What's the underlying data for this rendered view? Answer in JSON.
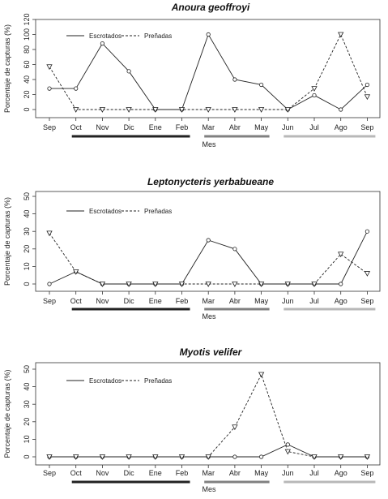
{
  "chart_data": [
    {
      "type": "line",
      "title": "Anoura geoffroyi",
      "xlabel": "Mes",
      "ylabel": "Porcentaje de capturas (%)",
      "categories": [
        "Sep",
        "Oct",
        "Nov",
        "Dic",
        "Ene",
        "Feb",
        "Mar",
        "Abr",
        "May",
        "Jun",
        "Jul",
        "Ago",
        "Sep"
      ],
      "ylim": [
        0,
        120
      ],
      "yticks": [
        0,
        20,
        40,
        60,
        80,
        100,
        120
      ],
      "legend_position": "top-left",
      "series": [
        {
          "name": "Escrotados",
          "style": "solid",
          "marker": "circle",
          "values": [
            28,
            28,
            88,
            51,
            0,
            0,
            100,
            40,
            33,
            0,
            19,
            0,
            33
          ]
        },
        {
          "name": "Preñadas",
          "style": "dashed",
          "marker": "triangle-down",
          "values": [
            57,
            0,
            0,
            0,
            0,
            0,
            0,
            0,
            0,
            0,
            28,
            100,
            17
          ]
        }
      ],
      "season_bars": [
        {
          "from": "Oct",
          "to": "Feb",
          "color": "#222222"
        },
        {
          "from": "Mar",
          "to": "May",
          "color": "#808080"
        },
        {
          "from": "Jun",
          "to": "Sep",
          "color": "#b8b8b8"
        }
      ]
    },
    {
      "type": "line",
      "title": "Leptonycteris yerbabueane",
      "xlabel": "Mes",
      "ylabel": "Porcentaje de capturas (%)",
      "categories": [
        "Sep",
        "Oct",
        "Nov",
        "Dic",
        "Ene",
        "Feb",
        "Mar",
        "Abr",
        "May",
        "Jun",
        "Jul",
        "Ago",
        "Sep"
      ],
      "ylim": [
        0,
        50
      ],
      "yticks": [
        0,
        10,
        20,
        30,
        40,
        50
      ],
      "legend_position": "top-left",
      "series": [
        {
          "name": "Escrotados",
          "style": "solid",
          "marker": "circle",
          "values": [
            0,
            7,
            0,
            0,
            0,
            0,
            25,
            20,
            0,
            0,
            0,
            0,
            30
          ]
        },
        {
          "name": "Preñadas",
          "style": "dashed",
          "marker": "triangle-down",
          "values": [
            29,
            7,
            0,
            0,
            0,
            0,
            0,
            0,
            0,
            0,
            0,
            17,
            6
          ]
        }
      ],
      "season_bars": [
        {
          "from": "Oct",
          "to": "Feb",
          "color": "#222222"
        },
        {
          "from": "Mar",
          "to": "May",
          "color": "#808080"
        },
        {
          "from": "Jun",
          "to": "Sep",
          "color": "#b8b8b8"
        }
      ]
    },
    {
      "type": "line",
      "title": "Myotis velifer",
      "xlabel": "Mes",
      "ylabel": "Porcentaje de capturas (%)",
      "categories": [
        "Sep",
        "Oct",
        "Nov",
        "Dic",
        "Ene",
        "Feb",
        "Mar",
        "Abr",
        "May",
        "Jun",
        "Jul",
        "Ago",
        "Sep"
      ],
      "ylim": [
        0,
        50
      ],
      "yticks": [
        0,
        10,
        20,
        30,
        40,
        50
      ],
      "legend_position": "top-left",
      "series": [
        {
          "name": "Escrotados",
          "style": "solid",
          "marker": "circle",
          "values": [
            0,
            0,
            0,
            0,
            0,
            0,
            0,
            0,
            0,
            7,
            0,
            0,
            0
          ]
        },
        {
          "name": "Preñadas",
          "style": "dashed",
          "marker": "triangle-down",
          "values": [
            0,
            0,
            0,
            0,
            0,
            0,
            0,
            17,
            47,
            3,
            0,
            0,
            0
          ]
        }
      ],
      "season_bars": [
        {
          "from": "Oct",
          "to": "Feb",
          "color": "#222222"
        },
        {
          "from": "Mar",
          "to": "May",
          "color": "#808080"
        },
        {
          "from": "Jun",
          "to": "Sep",
          "color": "#b8b8b8"
        }
      ]
    }
  ]
}
